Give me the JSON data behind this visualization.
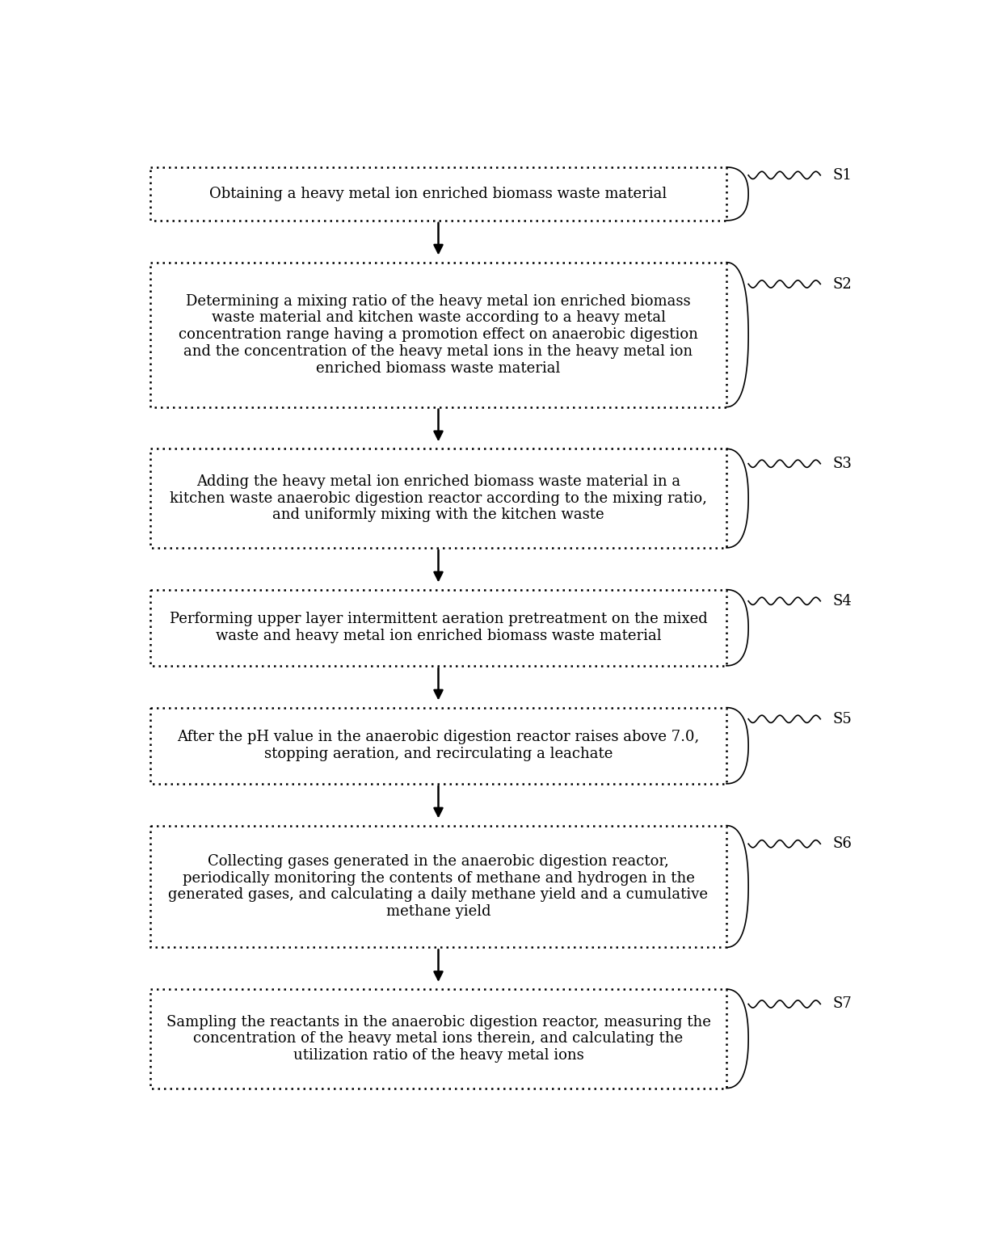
{
  "steps": [
    {
      "label": "S1",
      "text": "Obtaining a heavy metal ion enriched biomass waste material",
      "lines": [
        "Obtaining a heavy metal ion enriched biomass waste material"
      ]
    },
    {
      "label": "S2",
      "text": "Determining a mixing ratio of the heavy metal ion enriched biomass\nwaste material and kitchen waste according to a heavy metal\nconcentration range having a promotion effect on anaerobic digestion\nand the concentration of the heavy metal ions in the heavy metal ion\nenriched biomass waste material",
      "lines": [
        "Determining a mixing ratio of the heavy metal ion enriched biomass",
        "waste material and kitchen waste according to a heavy metal",
        "concentration range having a promotion effect on anaerobic digestion",
        "and the concentration of the heavy metal ions in the heavy metal ion",
        "enriched biomass waste material"
      ]
    },
    {
      "label": "S3",
      "text": "Adding the heavy metal ion enriched biomass waste material in a\nkitchen waste anaerobic digestion reactor according to the mixing ratio,\nand uniformly mixing with the kitchen waste",
      "lines": [
        "Adding the heavy metal ion enriched biomass waste material in a",
        "kitchen waste anaerobic digestion reactor according to the mixing ratio,",
        "and uniformly mixing with the kitchen waste"
      ]
    },
    {
      "label": "S4",
      "text": "Performing upper layer intermittent aeration pretreatment on the mixed\nwaste and heavy metal ion enriched biomass waste material",
      "lines": [
        "Performing upper layer intermittent aeration pretreatment on the mixed",
        "waste and heavy metal ion enriched biomass waste material"
      ]
    },
    {
      "label": "S5",
      "text": "After the pH value in the anaerobic digestion reactor raises above 7.0,\nstopping aeration, and recirculating a leachate",
      "lines": [
        "After the pH value in the anaerobic digestion reactor raises above 7.0,",
        "stopping aeration, and recirculating a leachate"
      ]
    },
    {
      "label": "S6",
      "text": "Collecting gases generated in the anaerobic digestion reactor,\nperiodically monitoring the contents of methane and hydrogen in the\ngenerated gases, and calculating a daily methane yield and a cumulative\nmethane yield",
      "lines": [
        "Collecting gases generated in the anaerobic digestion reactor,",
        "periodically monitoring the contents of methane and hydrogen in the",
        "generated gases, and calculating a daily methane yield and a cumulative",
        "methane yield"
      ]
    },
    {
      "label": "S7",
      "text": "Sampling the reactants in the anaerobic digestion reactor, measuring the\nconcentration of the heavy metal ions therein, and calculating the\nutilization ratio of the heavy metal ions",
      "lines": [
        "Sampling the reactants in the anaerobic digestion reactor, measuring the",
        "concentration of the heavy metal ions therein, and calculating the",
        "utilization ratio of the heavy metal ions"
      ]
    }
  ],
  "box_facecolor": "#ffffff",
  "box_edgecolor": "#000000",
  "arrow_color": "#000000",
  "text_color": "#000000",
  "label_color": "#000000",
  "background_color": "#ffffff",
  "font_size": 13,
  "label_font_size": 13
}
